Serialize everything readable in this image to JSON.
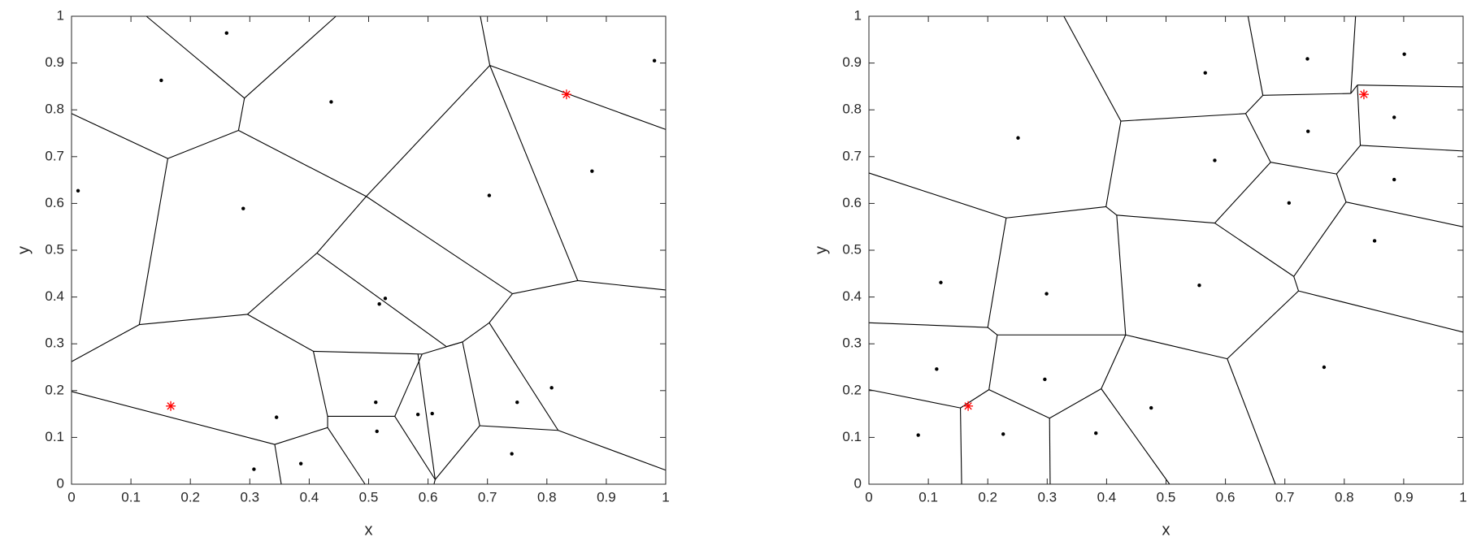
{
  "chart_data": [
    {
      "type": "voronoi",
      "x_label": "x",
      "y_label": "y",
      "xlim": [
        0,
        1
      ],
      "ylim": [
        0,
        1
      ],
      "xticks": [
        0,
        0.1,
        0.2,
        0.3,
        0.4,
        0.5,
        0.6,
        0.7,
        0.8,
        0.9,
        1
      ],
      "yticks": [
        0,
        0.1,
        0.2,
        0.3,
        0.4,
        0.5,
        0.6,
        0.7,
        0.8,
        0.9,
        1
      ],
      "point_color": "#000000",
      "marker_color": "#ff0000",
      "edge_color": "#000000",
      "points": {
        "x": [
          0.261,
          0.151,
          0.437,
          0.981,
          0.011,
          0.289,
          0.703,
          0.876,
          0.528,
          0.518,
          0.345,
          0.307,
          0.386,
          0.512,
          0.514,
          0.583,
          0.607,
          0.75,
          0.808,
          0.741
        ],
        "y": [
          0.964,
          0.863,
          0.817,
          0.905,
          0.627,
          0.589,
          0.617,
          0.669,
          0.397,
          0.385,
          0.143,
          0.032,
          0.044,
          0.175,
          0.113,
          0.149,
          0.151,
          0.175,
          0.206,
          0.065
        ]
      },
      "markers": {
        "x": [
          0.167,
          0.833
        ],
        "y": [
          0.167,
          0.833
        ]
      },
      "edges": [
        {
          "x": [
            0.126,
            0.291
          ],
          "y": [
            1,
            0.825
          ]
        },
        {
          "x": [
            0.291,
            0.445
          ],
          "y": [
            0.825,
            1
          ]
        },
        {
          "x": [
            0.291,
            0.281
          ],
          "y": [
            0.825,
            0.756
          ]
        },
        {
          "x": [
            0,
            0.162
          ],
          "y": [
            0.792,
            0.696
          ]
        },
        {
          "x": [
            0.162,
            0.281
          ],
          "y": [
            0.696,
            0.756
          ]
        },
        {
          "x": [
            0.162,
            0.114
          ],
          "y": [
            0.696,
            0.341
          ]
        },
        {
          "x": [
            0.281,
            0.496
          ],
          "y": [
            0.756,
            0.615
          ]
        },
        {
          "x": [
            0.496,
            0.704
          ],
          "y": [
            0.615,
            0.895
          ]
        },
        {
          "x": [
            0.704,
            0.688
          ],
          "y": [
            0.895,
            1
          ]
        },
        {
          "x": [
            0.704,
            1
          ],
          "y": [
            0.895,
            0.758
          ]
        },
        {
          "x": [
            0.704,
            0.852
          ],
          "y": [
            0.895,
            0.435
          ]
        },
        {
          "x": [
            0.852,
            1
          ],
          "y": [
            0.435,
            0.415
          ]
        },
        {
          "x": [
            0.852,
            0.742
          ],
          "y": [
            0.435,
            0.407
          ]
        },
        {
          "x": [
            0.496,
            0.742
          ],
          "y": [
            0.615,
            0.407
          ]
        },
        {
          "x": [
            0.496,
            0.413
          ],
          "y": [
            0.615,
            0.494
          ]
        },
        {
          "x": [
            0.413,
            0.296
          ],
          "y": [
            0.494,
            0.363
          ]
        },
        {
          "x": [
            0.413,
            0.631
          ],
          "y": [
            0.494,
            0.294
          ]
        },
        {
          "x": [
            0.296,
            0.114
          ],
          "y": [
            0.363,
            0.341
          ]
        },
        {
          "x": [
            0.114,
            0
          ],
          "y": [
            0.341,
            0.262
          ]
        },
        {
          "x": [
            0.296,
            0.407
          ],
          "y": [
            0.363,
            0.284
          ]
        },
        {
          "x": [
            0.742,
            0.703
          ],
          "y": [
            0.407,
            0.345
          ]
        },
        {
          "x": [
            0.703,
            0.658
          ],
          "y": [
            0.345,
            0.304
          ]
        },
        {
          "x": [
            0.658,
            0.59
          ],
          "y": [
            0.304,
            0.278
          ]
        },
        {
          "x": [
            0.631,
            0.658
          ],
          "y": [
            0.294,
            0.304
          ]
        },
        {
          "x": [
            0.59,
            0.407
          ],
          "y": [
            0.278,
            0.284
          ]
        },
        {
          "x": [
            0.407,
            0.431
          ],
          "y": [
            0.284,
            0.145
          ]
        },
        {
          "x": [
            0,
            0.342
          ],
          "y": [
            0.198,
            0.085
          ]
        },
        {
          "x": [
            0.342,
            0.431
          ],
          "y": [
            0.085,
            0.121
          ]
        },
        {
          "x": [
            0.431,
            0.431
          ],
          "y": [
            0.121,
            0.145
          ]
        },
        {
          "x": [
            0.431,
            0.544
          ],
          "y": [
            0.145,
            0.145
          ]
        },
        {
          "x": [
            0.544,
            0.59
          ],
          "y": [
            0.145,
            0.278
          ]
        },
        {
          "x": [
            0.583,
            0.612
          ],
          "y": [
            0.278,
            0.01
          ]
        },
        {
          "x": [
            0.544,
            0.612
          ],
          "y": [
            0.145,
            0.01
          ]
        },
        {
          "x": [
            0.612,
            0.687
          ],
          "y": [
            0.01,
            0.125
          ]
        },
        {
          "x": [
            0.687,
            0.658
          ],
          "y": [
            0.125,
            0.304
          ]
        },
        {
          "x": [
            0.687,
            0.819
          ],
          "y": [
            0.125,
            0.115
          ]
        },
        {
          "x": [
            0.819,
            0.703
          ],
          "y": [
            0.115,
            0.345
          ]
        },
        {
          "x": [
            0.819,
            1
          ],
          "y": [
            0.115,
            0.03
          ]
        },
        {
          "x": [
            0.342,
            0.353
          ],
          "y": [
            0.085,
            0
          ]
        },
        {
          "x": [
            0.431,
            0.494
          ],
          "y": [
            0.121,
            0
          ]
        },
        {
          "x": [
            0.612,
            0.61
          ],
          "y": [
            0.01,
            0
          ]
        }
      ]
    },
    {
      "type": "voronoi",
      "x_label": "x",
      "y_label": "y",
      "xlim": [
        0,
        1
      ],
      "ylim": [
        0,
        1
      ],
      "xticks": [
        0,
        0.1,
        0.2,
        0.3,
        0.4,
        0.5,
        0.6,
        0.7,
        0.8,
        0.9,
        1
      ],
      "yticks": [
        0,
        0.1,
        0.2,
        0.3,
        0.4,
        0.5,
        0.6,
        0.7,
        0.8,
        0.9,
        1
      ],
      "point_color": "#000000",
      "marker_color": "#ff0000",
      "edge_color": "#000000",
      "points": {
        "x": [
          0.251,
          0.566,
          0.738,
          0.901,
          0.582,
          0.739,
          0.884,
          0.884,
          0.707,
          0.851,
          0.121,
          0.299,
          0.556,
          0.114,
          0.296,
          0.766,
          0.083,
          0.226,
          0.382,
          0.475
        ],
        "y": [
          0.74,
          0.879,
          0.909,
          0.919,
          0.692,
          0.754,
          0.784,
          0.651,
          0.601,
          0.52,
          0.431,
          0.407,
          0.425,
          0.246,
          0.224,
          0.25,
          0.105,
          0.107,
          0.109,
          0.163
        ]
      },
      "markers": {
        "x": [
          0.167,
          0.833
        ],
        "y": [
          0.167,
          0.833
        ]
      },
      "edges": [
        {
          "x": [
            0.328,
            0.424
          ],
          "y": [
            1,
            0.776
          ]
        },
        {
          "x": [
            0.424,
            0.634
          ],
          "y": [
            0.776,
            0.792
          ]
        },
        {
          "x": [
            0.634,
            0.663
          ],
          "y": [
            0.792,
            0.831
          ]
        },
        {
          "x": [
            0.663,
            0.638
          ],
          "y": [
            0.831,
            1
          ]
        },
        {
          "x": [
            0.663,
            0.811
          ],
          "y": [
            0.831,
            0.835
          ]
        },
        {
          "x": [
            0.811,
            0.819
          ],
          "y": [
            0.835,
            1
          ]
        },
        {
          "x": [
            0.811,
            0.822
          ],
          "y": [
            0.835,
            0.853
          ]
        },
        {
          "x": [
            0.822,
            1
          ],
          "y": [
            0.853,
            0.849
          ]
        },
        {
          "x": [
            0.822,
            0.827
          ],
          "y": [
            0.853,
            0.724
          ]
        },
        {
          "x": [
            0.634,
            0.676
          ],
          "y": [
            0.792,
            0.688
          ]
        },
        {
          "x": [
            0.827,
            1
          ],
          "y": [
            0.724,
            0.712
          ]
        },
        {
          "x": [
            0.827,
            0.787
          ],
          "y": [
            0.724,
            0.663
          ]
        },
        {
          "x": [
            0.676,
            0.787
          ],
          "y": [
            0.688,
            0.663
          ]
        },
        {
          "x": [
            0.787,
            0.803
          ],
          "y": [
            0.663,
            0.603
          ]
        },
        {
          "x": [
            0.803,
            1
          ],
          "y": [
            0.603,
            0.55
          ]
        },
        {
          "x": [
            0.803,
            0.715
          ],
          "y": [
            0.603,
            0.444
          ]
        },
        {
          "x": [
            0.676,
            0.582
          ],
          "y": [
            0.688,
            0.558
          ]
        },
        {
          "x": [
            0.582,
            0.417
          ],
          "y": [
            0.558,
            0.575
          ]
        },
        {
          "x": [
            0.424,
            0.399
          ],
          "y": [
            0.776,
            0.593
          ]
        },
        {
          "x": [
            0.399,
            0.417
          ],
          "y": [
            0.593,
            0.575
          ]
        },
        {
          "x": [
            0.399,
            0.231
          ],
          "y": [
            0.593,
            0.569
          ]
        },
        {
          "x": [
            0,
            0.231
          ],
          "y": [
            0.665,
            0.569
          ]
        },
        {
          "x": [
            0.231,
            0.2
          ],
          "y": [
            0.569,
            0.335
          ]
        },
        {
          "x": [
            0.417,
            0.432
          ],
          "y": [
            0.575,
            0.319
          ]
        },
        {
          "x": [
            0.582,
            0.715
          ],
          "y": [
            0.558,
            0.444
          ]
        },
        {
          "x": [
            0.715,
            0.723
          ],
          "y": [
            0.444,
            0.413
          ]
        },
        {
          "x": [
            0.723,
            1
          ],
          "y": [
            0.413,
            0.325
          ]
        },
        {
          "x": [
            0.723,
            0.603
          ],
          "y": [
            0.413,
            0.268
          ]
        },
        {
          "x": [
            0.432,
            0.603
          ],
          "y": [
            0.319,
            0.268
          ]
        },
        {
          "x": [
            0.603,
            0.684
          ],
          "y": [
            0.268,
            0
          ]
        },
        {
          "x": [
            0,
            0.2
          ],
          "y": [
            0.345,
            0.335
          ]
        },
        {
          "x": [
            0.2,
            0.216
          ],
          "y": [
            0.335,
            0.319
          ]
        },
        {
          "x": [
            0.216,
            0.432
          ],
          "y": [
            0.319,
            0.319
          ]
        },
        {
          "x": [
            0.432,
            0.391
          ],
          "y": [
            0.319,
            0.204
          ]
        },
        {
          "x": [
            0.391,
            0.506
          ],
          "y": [
            0.204,
            0
          ]
        },
        {
          "x": [
            0.391,
            0.304
          ],
          "y": [
            0.204,
            0.141
          ]
        },
        {
          "x": [
            0.304,
            0.305
          ],
          "y": [
            0.141,
            0
          ]
        },
        {
          "x": [
            0.304,
            0.202
          ],
          "y": [
            0.141,
            0.202
          ]
        },
        {
          "x": [
            0.202,
            0.216
          ],
          "y": [
            0.202,
            0.319
          ]
        },
        {
          "x": [
            0.202,
            0.154
          ],
          "y": [
            0.202,
            0.163
          ]
        },
        {
          "x": [
            0,
            0.154
          ],
          "y": [
            0.202,
            0.163
          ]
        },
        {
          "x": [
            0.154,
            0.156
          ],
          "y": [
            0.163,
            0
          ]
        }
      ]
    }
  ]
}
